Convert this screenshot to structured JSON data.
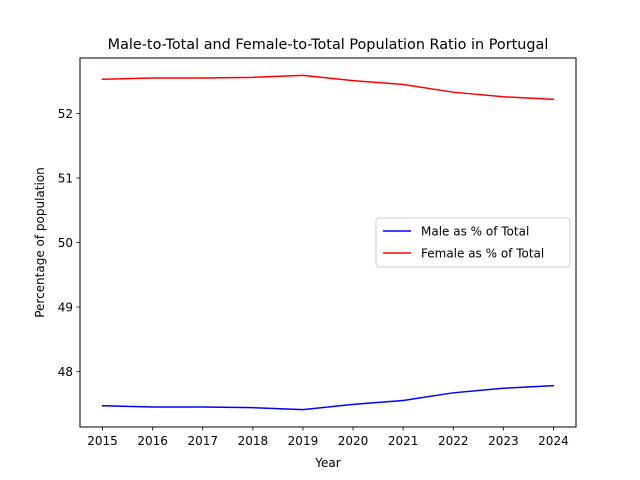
{
  "chart_data": {
    "type": "line",
    "title": "Male-to-Total and Female-to-Total Population Ratio in Portugal",
    "xlabel": "Year",
    "ylabel": "Percentage of population",
    "x": [
      2015,
      2016,
      2017,
      2018,
      2019,
      2020,
      2021,
      2022,
      2023,
      2024
    ],
    "x_tick_labels": [
      "2015",
      "2016",
      "2017",
      "2018",
      "2019",
      "2020",
      "2021",
      "2022",
      "2023",
      "2024"
    ],
    "y_ticks": [
      48,
      49,
      50,
      51,
      52
    ],
    "y_tick_labels": [
      "48",
      "49",
      "50",
      "51",
      "52"
    ],
    "xlim": [
      2014.55,
      2024.45
    ],
    "ylim": [
      47.14,
      52.86
    ],
    "grid": false,
    "legend_position": "center-right",
    "series": [
      {
        "name": "Male as % of Total",
        "color": "#0000ff",
        "values": [
          47.47,
          47.45,
          47.45,
          47.44,
          47.41,
          47.49,
          47.55,
          47.67,
          47.74,
          47.78
        ]
      },
      {
        "name": "Female as % of Total",
        "color": "#ff0000",
        "values": [
          52.53,
          52.55,
          52.55,
          52.56,
          52.59,
          52.51,
          52.45,
          52.33,
          52.26,
          52.22
        ]
      }
    ]
  }
}
